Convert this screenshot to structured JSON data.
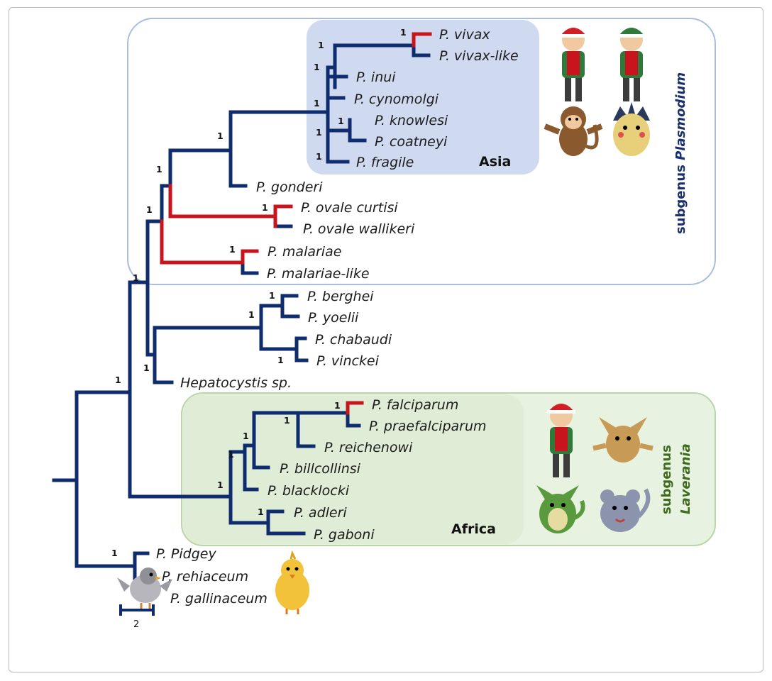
{
  "taxa": {
    "vivax": "P. vivax",
    "vivax_like": "P. vivax-like",
    "inui": "P. inui",
    "cynomolgi": "P. cynomolgi",
    "knowlesi": "P. knowlesi",
    "coatneyi": "P. coatneyi",
    "fragile": "P. fragile",
    "gonderi": "P. gonderi",
    "ovale_curtisi": "P. ovale curtisi",
    "ovale_wallikeri": "P. ovale wallikeri",
    "malariae": "P. malariae",
    "malariae_like": "P. malariae-like",
    "berghei": "P. berghei",
    "yoelii": "P. yoelii",
    "chabaudi": "P. chabaudi",
    "vinckei": "P. vinckei",
    "hepatocystis": "Hepatocystis sp.",
    "falciparum": "P. falciparum",
    "praefalciparum": "P. praefalciparum",
    "reichenowi": "P. reichenowi",
    "billcollinsi": "P. billcollinsi",
    "blacklocki": "P. blacklocki",
    "adleri": "P. adleri",
    "gaboni": "P. gaboni",
    "pidgey": "P. Pidgey",
    "rehiaceum": "P. rehiaceum",
    "gallinaceum": "P. gallinaceum"
  },
  "support_value": "1",
  "regions": {
    "asia": "Asia",
    "africa": "Africa"
  },
  "subgenus": {
    "plasmodium_prefix": "subgenus ",
    "plasmodium_name": "Plasmodium",
    "laverania_prefix": "subgenus",
    "laverania_name": "Laverania"
  },
  "scale_bar": "2",
  "colors": {
    "branch": "#0f2c6e",
    "human_branch": "#c8141c",
    "asia_box": "#cfdaf0",
    "plasmodium_outline": "#a9bde0",
    "laverania_box": "#e8f2e0",
    "laverania_outline": "#b9d6a8",
    "plasmodium_text": "#1a2f6e",
    "laverania_text": "#3f6b1f"
  },
  "icons": [
    "trainer-red-cap-icon",
    "trainer-green-cap-icon",
    "monkey-icon",
    "spiky-yellow-creature-icon",
    "trainer-red-cap-icon",
    "mankey-creature-icon",
    "green-dragon-icon",
    "rattata-creature-icon",
    "pidgey-bird-icon",
    "yellow-chick-icon"
  ]
}
